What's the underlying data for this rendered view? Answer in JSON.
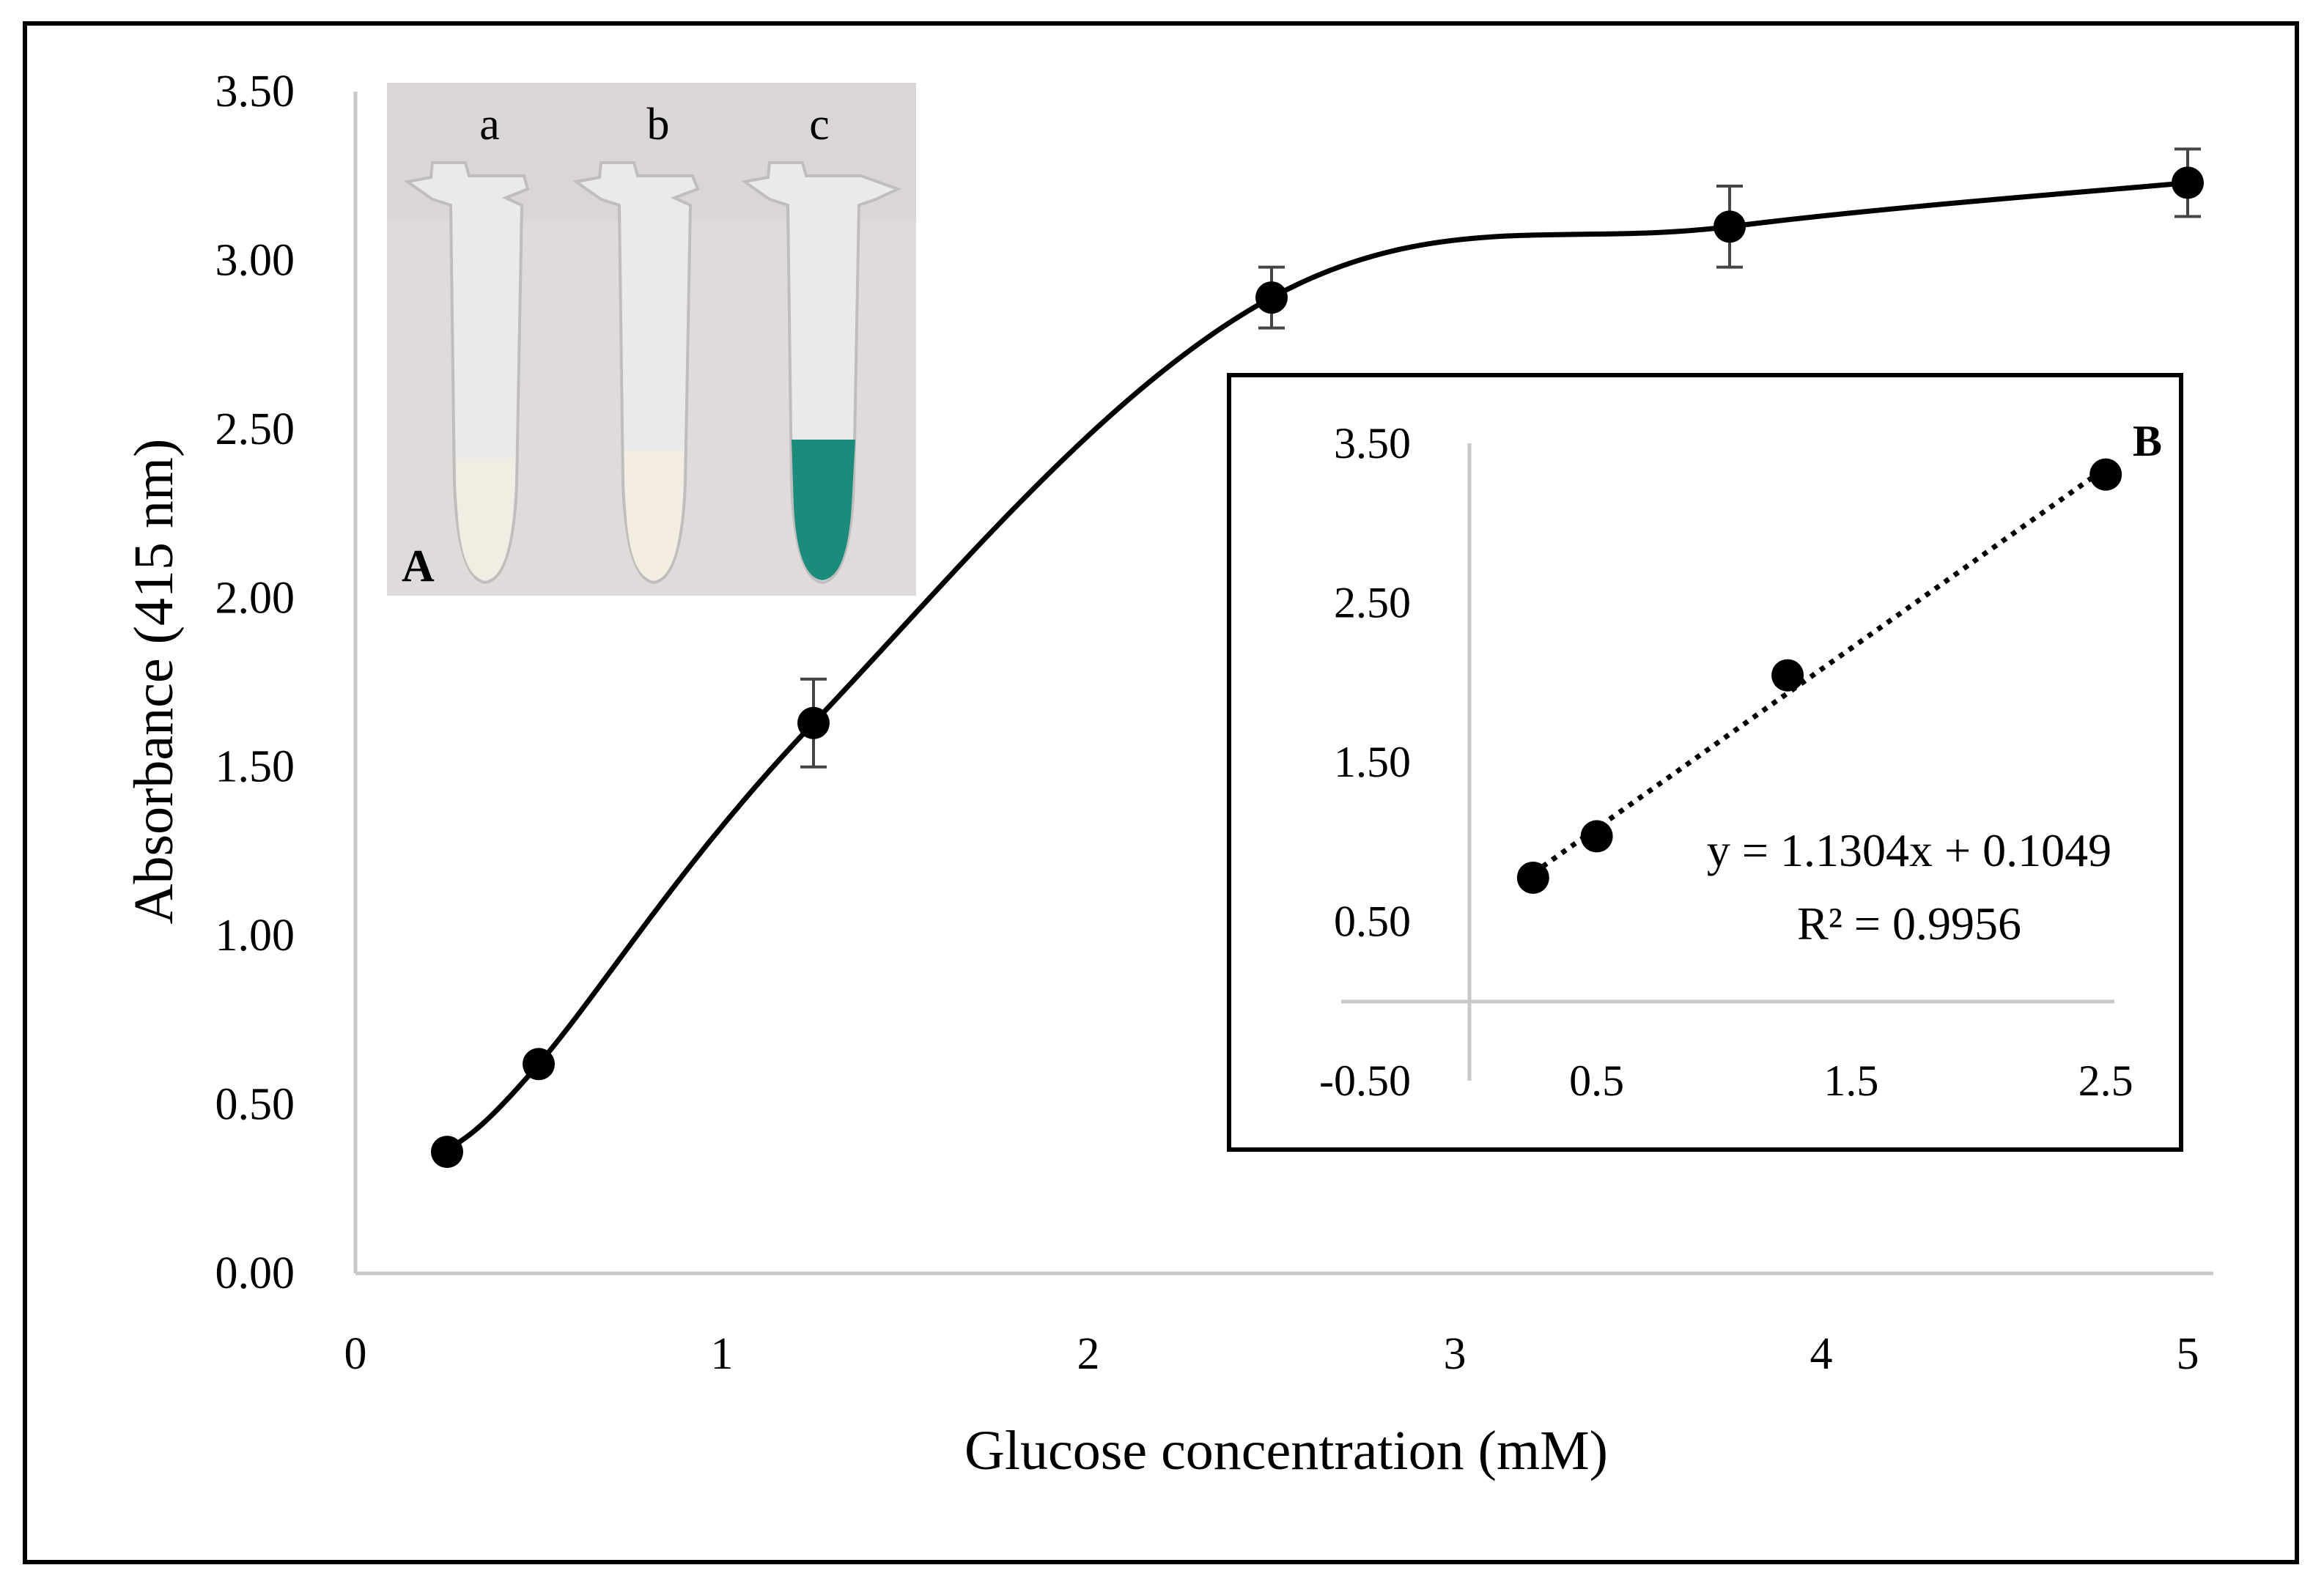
{
  "chart_data": [
    {
      "type": "line",
      "xlabel": "Glucose concentration (mM)",
      "ylabel": "Absorbance (415 nm)",
      "xlim": [
        0,
        5
      ],
      "ylim": [
        0,
        3.5
      ],
      "x_ticks": [
        "0",
        "1",
        "2",
        "3",
        "4",
        "5"
      ],
      "y_ticks": [
        "0.00",
        "0.50",
        "1.00",
        "1.50",
        "2.00",
        "2.50",
        "3.00",
        "3.50"
      ],
      "smooth_line": true,
      "grid": false,
      "series": [
        {
          "x": [
            0.25,
            0.5,
            1.25,
            2.5,
            3.75,
            5
          ],
          "y": [
            0.36,
            0.62,
            1.63,
            2.89,
            3.1,
            3.23
          ],
          "error": [
            0,
            0,
            0.13,
            0.09,
            0.12,
            0.1
          ]
        }
      ]
    },
    {
      "type": "scatter",
      "panel_label": "B",
      "xlim": [
        0,
        2.75
      ],
      "ylim": [
        -0.5,
        3.5
      ],
      "x_ticks": [
        "0.5",
        "1.5",
        "2.5"
      ],
      "y_ticks": [
        "-0.50",
        "0.50",
        "1.50",
        "2.50",
        "3.50"
      ],
      "x_tick_values": [
        0.5,
        1.5,
        2.5
      ],
      "y_tick_values": [
        -0.5,
        0.5,
        1.5,
        2.5,
        3.5
      ],
      "series": [
        {
          "x": [
            0.25,
            0.5,
            1.25,
            2.5
          ],
          "y": [
            0.36,
            0.62,
            1.63,
            2.89
          ]
        }
      ],
      "trendline": {
        "slope": 1.1304,
        "intercept": 0.1049,
        "equation": "y = 1.1304x + 0.1049",
        "r2": "R² = 0.9956"
      }
    }
  ],
  "photo_inset": {
    "panel_label": "A",
    "tube_labels": [
      "a",
      "b",
      "c"
    ],
    "tube_colors": [
      "#f2ede2",
      "#f3eee0",
      "#1b8c7b"
    ],
    "background_color": "#dad6d6"
  }
}
